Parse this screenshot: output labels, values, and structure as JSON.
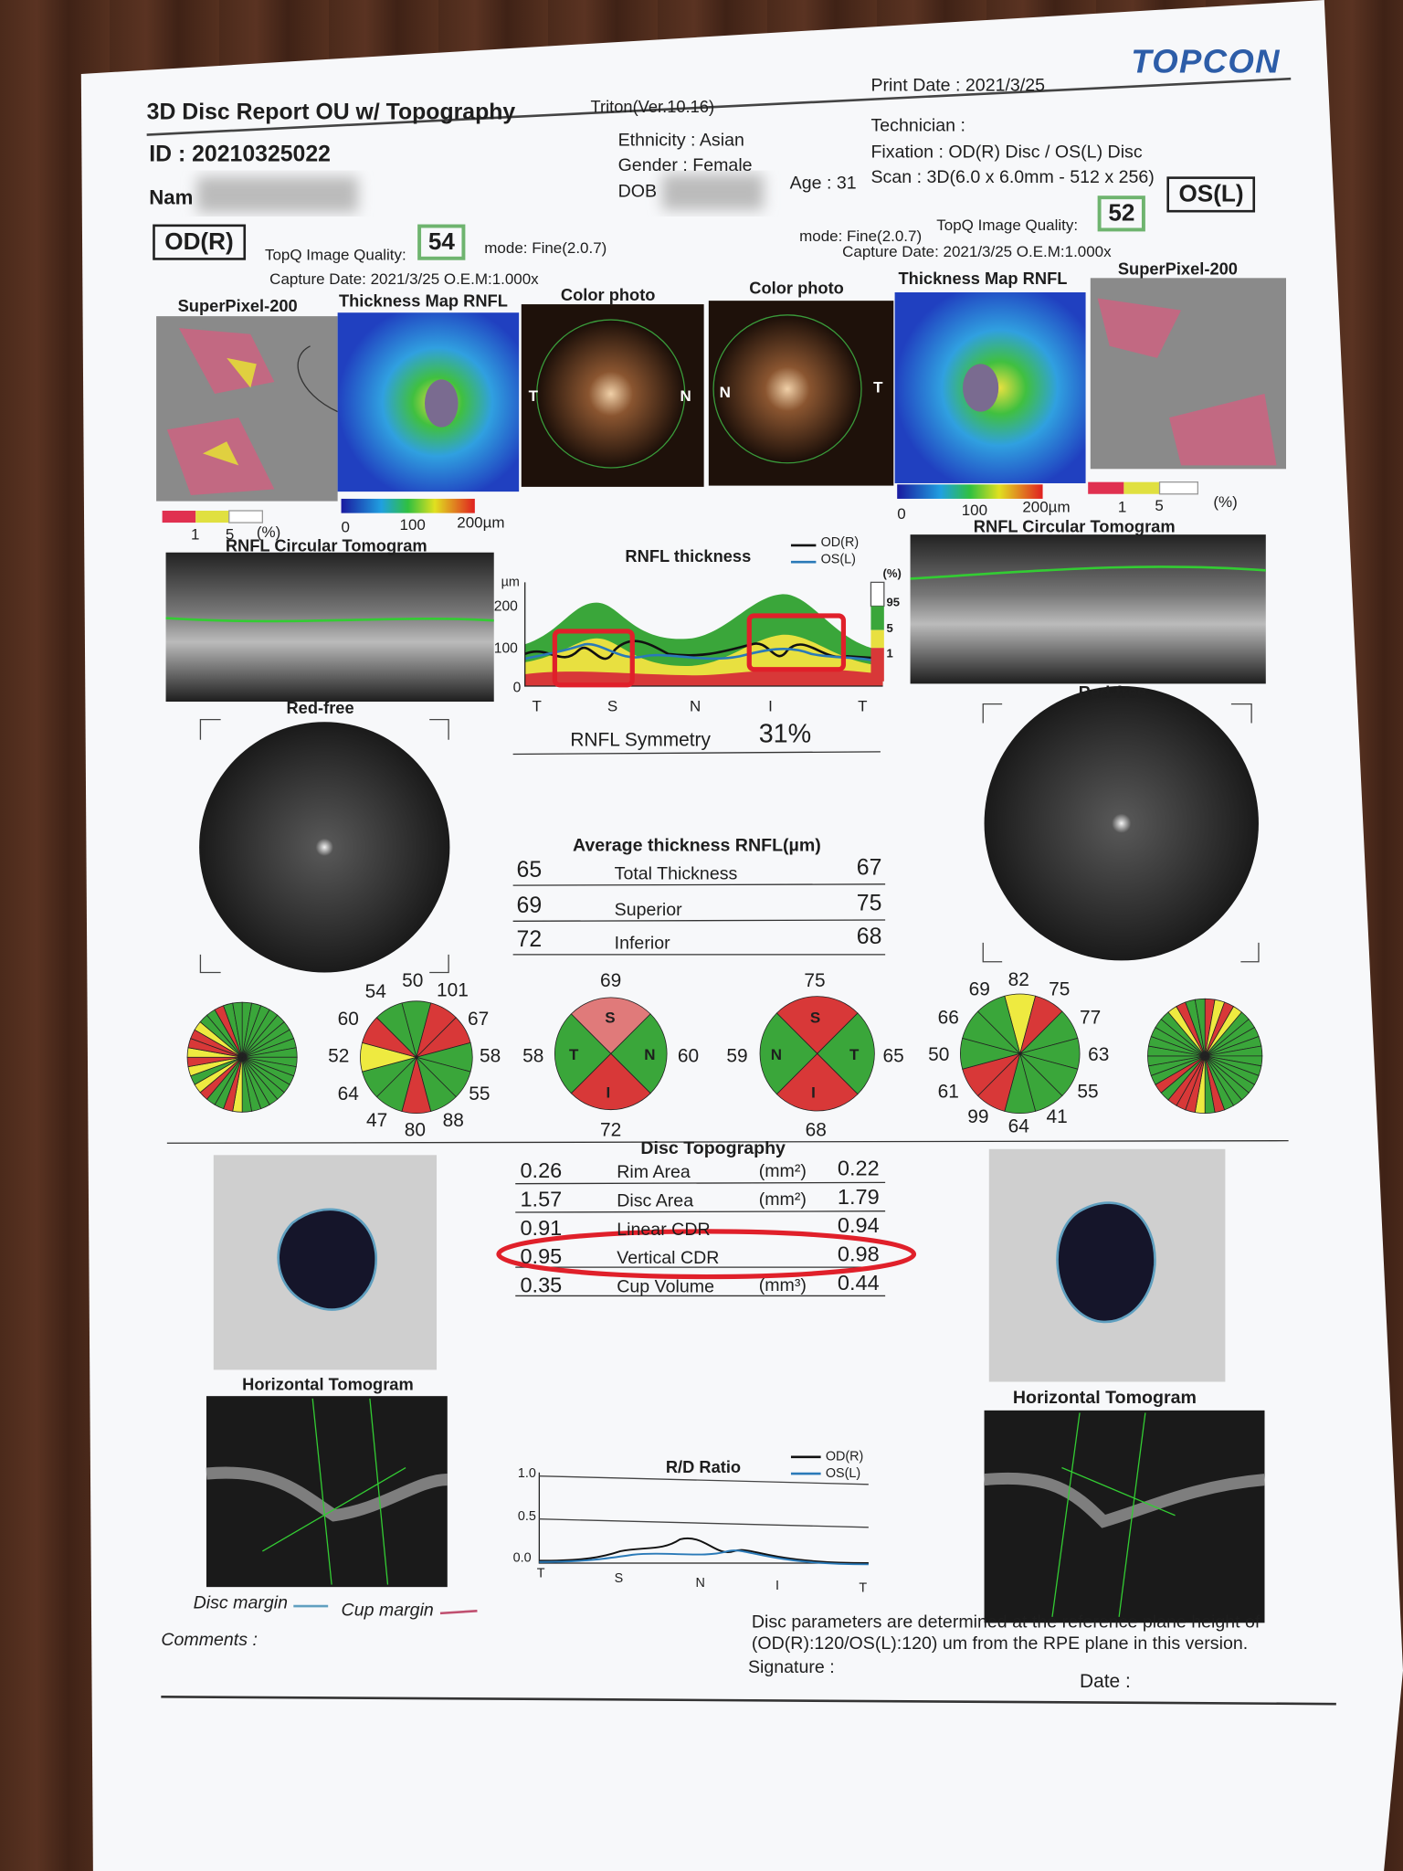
{
  "header": {
    "title": "3D Disc Report OU w/ Topography",
    "device": "Triton(Ver.10.16)",
    "brand": "TOPCON",
    "print_date": "Print Date : 2021/3/25",
    "id": "ID : 20210325022",
    "name_label": "Nam",
    "ethnicity": "Ethnicity : Asian",
    "gender": "Gender : Female",
    "dob_label": "DOB",
    "age": "Age : 31",
    "technician": "Technician :",
    "fixation": "Fixation : OD(R) Disc / OS(L) Disc",
    "scan": "Scan : 3D(6.0 x 6.0mm - 512 x 256)"
  },
  "od": {
    "eye": "OD(R)",
    "quality_label": "TopQ Image Quality:",
    "quality": "54",
    "mode": "mode: Fine(2.0.7)",
    "capture": "Capture Date: 2021/3/25 O.E.M:1.000x"
  },
  "os": {
    "eye": "OS(L)",
    "quality_label": "TopQ Image Quality:",
    "quality": "52",
    "mode": "mode: Fine(2.0.7)",
    "capture": "Capture Date: 2021/3/25 O.E.M:1.000x"
  },
  "image_labels": {
    "od": [
      "SuperPixel-200",
      "Thickness Map RNFL",
      "Color photo"
    ],
    "os": [
      "Color photo",
      "Thickness Map RNFL",
      "SuperPixel-200"
    ]
  },
  "fundus_labels": {
    "od": [
      "T",
      "N"
    ],
    "os": [
      "N",
      "T"
    ]
  },
  "scales": {
    "od_superpixel": [
      "1",
      "5",
      "(%)"
    ],
    "od_thickness": [
      "0",
      "100",
      "200µm"
    ],
    "os_thickness": [
      "0",
      "100",
      "200µm"
    ],
    "os_superpixel": [
      "1",
      "5",
      "(%)"
    ]
  },
  "circular_tomogram": {
    "od": "RNFL Circular Tomogram",
    "os": "RNFL Circular Tomogram"
  },
  "rnfl_chart": {
    "title": "RNFL thickness",
    "legend": [
      "OD(R)",
      "OS(L)"
    ],
    "y_unit": "µm",
    "y_ticks": [
      "200",
      "100",
      "0"
    ],
    "x_labels": [
      "T",
      "S",
      "N",
      "I",
      "T"
    ],
    "percentile_label": "(%)",
    "percentiles": [
      "95",
      "5",
      "1"
    ]
  },
  "red_free": {
    "od": "Red-free",
    "os": "Red-free"
  },
  "symmetry": {
    "label": "RNFL Symmetry",
    "value": "31%"
  },
  "average_thickness": {
    "title": "Average thickness RNFL(µm)",
    "rows": [
      [
        "65",
        "Total Thickness",
        "67"
      ],
      [
        "69",
        "Superior",
        "75"
      ],
      [
        "72",
        "Inferior",
        "68"
      ]
    ]
  },
  "sectors": {
    "od_clock": [
      "54",
      "50",
      "101",
      "60",
      "67",
      "52",
      "58",
      "64",
      "55",
      "47",
      "80",
      "88"
    ],
    "od_quadrant": {
      "values": [
        "69",
        "58",
        "60",
        "72"
      ],
      "letters": [
        "S",
        "T",
        "N",
        "I"
      ]
    },
    "os_quadrant": {
      "values": [
        "75",
        "59",
        "65",
        "68"
      ],
      "letters": [
        "S",
        "N",
        "T",
        "I"
      ]
    },
    "os_clock": [
      "69",
      "82",
      "75",
      "66",
      "77",
      "50",
      "63",
      "61",
      "55",
      "99",
      "64",
      "41"
    ]
  },
  "disc_topography": {
    "title": "Disc Topography",
    "rows": [
      [
        "0.26",
        "Rim Area",
        "(mm²)",
        "0.22"
      ],
      [
        "1.57",
        "Disc Area",
        "(mm²)",
        "1.79"
      ],
      [
        "0.91",
        "Linear CDR",
        "",
        "0.94"
      ],
      [
        "0.95",
        "Vertical CDR",
        "",
        "0.98"
      ],
      [
        "0.35",
        "Cup Volume",
        "(mm³)",
        "0.44"
      ]
    ]
  },
  "horizontal_tomogram": {
    "od": "Horizontal Tomogram",
    "os": "Horizontal Tomogram"
  },
  "rd_chart": {
    "title": "R/D Ratio",
    "legend": [
      "OD(R)",
      "OS(L)"
    ],
    "y_ticks": [
      "1.0",
      "0.5",
      "0.0"
    ],
    "x_labels": [
      "T",
      "S",
      "N",
      "I",
      "T"
    ]
  },
  "footer": {
    "disc_margin": "Disc margin",
    "cup_margin": "Cup margin",
    "comments": "Comments :",
    "note": [
      "Disc parameters are determined at the reference plane height of",
      "(OD(R):120/OS(L):120) um from the RPE plane in this version."
    ],
    "signature": "Signature :",
    "date": "Date :"
  }
}
